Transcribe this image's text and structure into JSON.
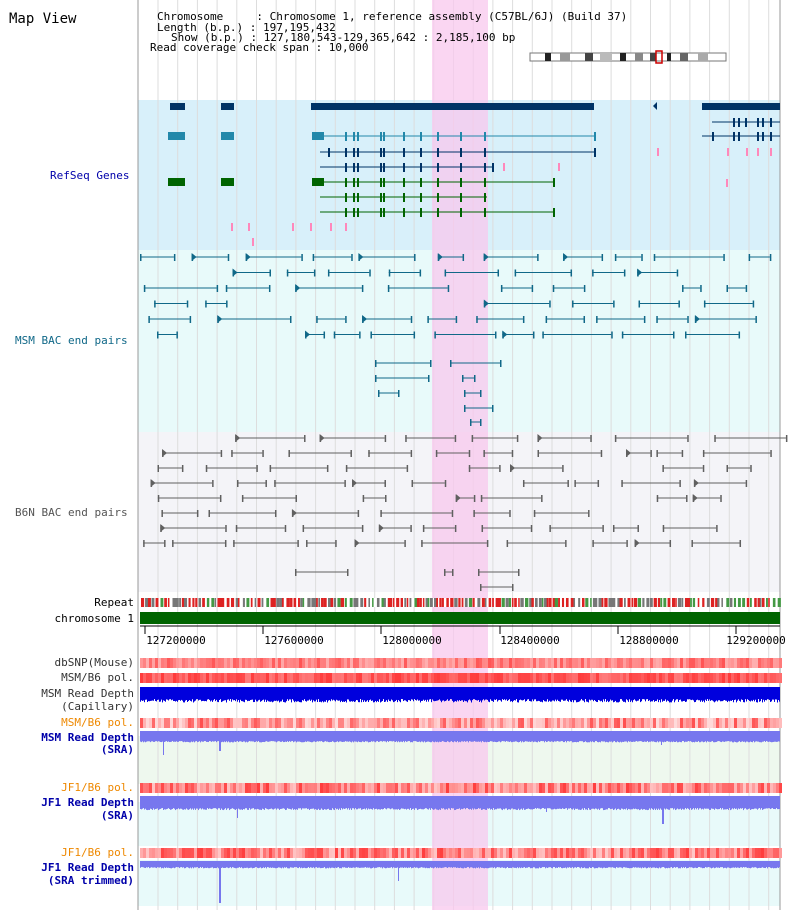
{
  "title": "Map View",
  "info": {
    "line1": "Chromosome     : Chromosome 1, reference assembly (C57BL/6J) (Build 37)",
    "line2": "Length (b.p.) : 197,195,432",
    "line3": "Show (b.p.) : 127,180,543-129,365,642 : 2,185,100 bp",
    "line4": "Read coverage check span : 10,000"
  },
  "tracks": {
    "refseq": "RefSeq Genes",
    "msm_bac": "MSM BAC end pairs",
    "b6n_bac": "B6N BAC end pairs",
    "repeat": "Repeat",
    "chromosome": "chromosome 1",
    "dbsnp": "dbSNP(Mouse)",
    "msm_b6_pol_1": "MSM/B6 pol.",
    "msm_depth_cap_1": "MSM Read Depth",
    "msm_depth_cap_2": "(Capillary)",
    "msm_b6_pol_2": "MSM/B6 pol.",
    "msm_depth_sra_1": "MSM Read Depth",
    "msm_depth_sra_2": "(SRA)",
    "jf1_b6_pol_1": "JF1/B6 pol.",
    "jf1_depth_sra_1": "JF1 Read Depth",
    "jf1_depth_sra_2": "(SRA)",
    "jf1_b6_pol_2": "JF1/B6 pol.",
    "jf1_depth_trim_1": "JF1 Read Depth",
    "jf1_depth_trim_2": "(SRA trimmed)"
  },
  "axis": {
    "ticks": [
      "127200000",
      "127600000",
      "128000000",
      "128400000",
      "128800000",
      "129200000"
    ]
  },
  "colors": {
    "refseq_bg": "#d8f0fa",
    "msm_bac_bg": "#e8fafa",
    "b6n_bac_bg": "#f4f4f8",
    "highlight": "#f8c8ee",
    "chromosome_bar": "#006400",
    "gene_dark": "#003366",
    "gene_teal": "#2288aa",
    "gene_green": "#006400",
    "bac_teal": "#106888",
    "bac_gray": "#606060",
    "depth_blue": "#0000dd",
    "depth_light": "#7777ee",
    "pol_red": "#ee2222",
    "label_blue": "#0000aa",
    "label_orange": "#ee8800"
  }
}
